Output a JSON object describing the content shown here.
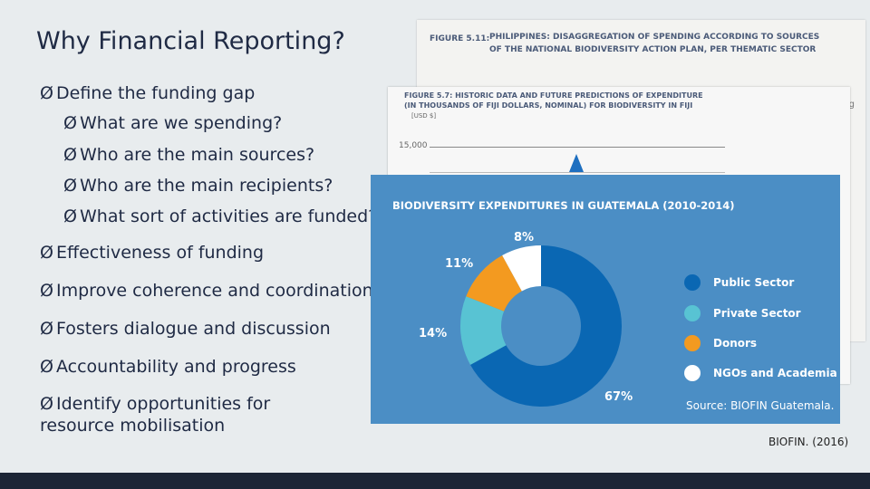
{
  "title": "Why Financial Reporting?",
  "bullets": [
    {
      "text": "Define the funding gap",
      "level": 1
    },
    {
      "text": "What are we spending?",
      "level": 2
    },
    {
      "text": "Who are the main sources?",
      "level": 2
    },
    {
      "text": "Who are the main recipients?",
      "level": 2
    },
    {
      "text": "What sort of activities are funded?",
      "level": 2
    },
    {
      "text": "Effectiveness of funding",
      "level": 1
    },
    {
      "text": "Improve coherence and coordination",
      "level": 1
    },
    {
      "text": "Fosters dialogue and discussion",
      "level": 1
    },
    {
      "text": "Accountability and progress",
      "level": 1
    },
    {
      "text": "Identify opportunities for resource mobilisation",
      "level": 1
    }
  ],
  "bullet_glyph": "Ø",
  "figure_back": {
    "caption_label": "FIGURE 5.11:",
    "caption_line1": "PHILIPPINES: DISAGGREGATION OF SPENDING ACCORDING TO SOURCES",
    "caption_line2": "OF THE NATIONAL BIODIVERSITY ACTION PLAN, PER THEMATIC SECTOR",
    "trailing_text": "g"
  },
  "figure_mid": {
    "caption_line1": "FIGURE 5.7: HISTORIC DATA AND FUTURE PREDICTIONS OF EXPENDITURE",
    "caption_line2": "(IN THOUSANDS OF FIJI DOLLARS, NOMINAL) FOR BIODIVERSITY IN FIJI",
    "unit": "[USD $]",
    "tick": "15,000"
  },
  "chart_data": {
    "type": "pie",
    "title": "BIODIVERSITY EXPENDITURES IN GUATEMALA (2010-2014)",
    "categories": [
      "Public Sector",
      "Private Sector",
      "Donors",
      "NGOs and Academia"
    ],
    "values": [
      67,
      14,
      11,
      8
    ],
    "labels": [
      "67%",
      "14%",
      "11%",
      "8%"
    ],
    "colors": [
      "#0a67b3",
      "#58c3d3",
      "#f39a20",
      "#ffffff"
    ],
    "legend_position": "right",
    "source": "Source: BIOFIN Guatemala."
  },
  "citation": "BIOFIN. (2016)"
}
